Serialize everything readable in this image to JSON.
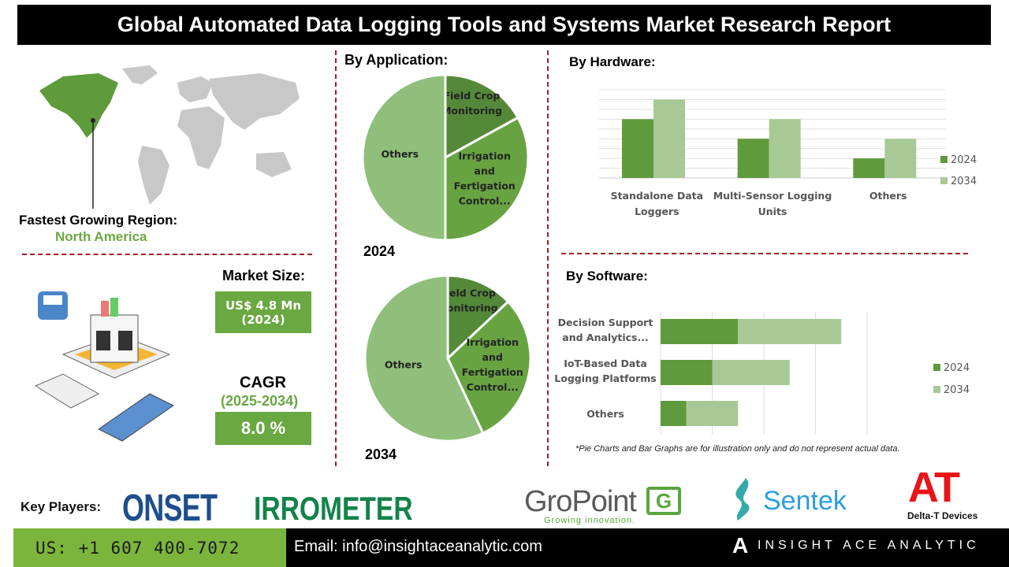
{
  "title": "Global Automated Data Logging Tools and Systems Market Research Report",
  "region": {
    "label": "Fastest Growing Region:",
    "value": "North America"
  },
  "market_size": {
    "label": "Market Size:",
    "value": "US$ 4.8 Mn",
    "year": "(2024)"
  },
  "cagr": {
    "label": "CAGR",
    "period": "(2025-2034)",
    "value": "8.0 %"
  },
  "colors": {
    "accent_green": "#6aa842",
    "divider_red": "#a31e22",
    "series_2024": "#5f9a3c",
    "series_2034": "#a7c996"
  },
  "chart_data": [
    {
      "type": "pie",
      "title": "By Application:",
      "subtitle": "2024",
      "labels": [
        "Field Crop Monitoring",
        "Irrigation and Fertigation Control...",
        "Others"
      ],
      "values": [
        17,
        33,
        50
      ],
      "colors": [
        "#55893a",
        "#68a342",
        "#8fbf7a"
      ]
    },
    {
      "type": "pie",
      "title": "",
      "subtitle": "2034",
      "labels": [
        "Field Crop Monitoring",
        "Irrigation and Fertigation Control...",
        "Others"
      ],
      "values": [
        13,
        30,
        57
      ],
      "colors": [
        "#55893a",
        "#68a342",
        "#8fbf7a"
      ]
    },
    {
      "type": "bar",
      "title": "By Hardware:",
      "categories": [
        "Standalone Data Loggers",
        "Multi-Sensor Logging Units",
        "Others"
      ],
      "series": [
        {
          "name": "2024",
          "values": [
            6,
            4,
            2
          ]
        },
        {
          "name": "2034",
          "values": [
            8,
            6,
            4
          ]
        }
      ],
      "ylim": [
        0,
        9
      ],
      "grid": true,
      "legend": "right"
    },
    {
      "type": "bar",
      "orientation": "horizontal",
      "stacked": true,
      "title": "By Software:",
      "categories": [
        "Decision Support and Analytics...",
        "IoT-Based Data Logging Platforms",
        "Others"
      ],
      "series": [
        {
          "name": "2024",
          "values": [
            1.5,
            1,
            0.5
          ]
        },
        {
          "name": "2034",
          "values": [
            2,
            1.5,
            1
          ]
        }
      ],
      "xlim": [
        0,
        4
      ],
      "grid": true,
      "legend": "right"
    }
  ],
  "footnote": "*Pie Charts and Bar Graphs are for illustration only and do not represent actual data.",
  "key_players": {
    "label": "Key Players:",
    "logos": [
      "ONSET",
      "IRROMETER",
      "GroPoint",
      "Growing innovation.",
      "Sentek",
      "AT",
      "Delta-T Devices"
    ]
  },
  "footer": {
    "phone": "US: +1 607 400-7072",
    "email": "Email: info@insightaceanalytic.com",
    "brand": "INSIGHT ACE ANALYTIC"
  }
}
